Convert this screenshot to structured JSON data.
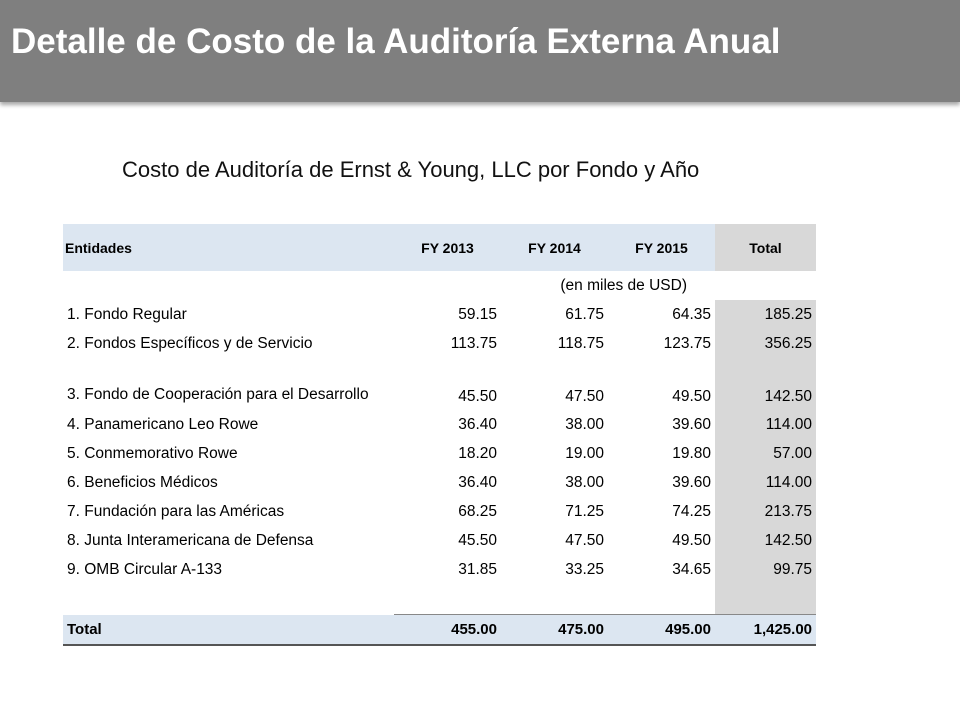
{
  "header": {
    "title": "Detalle de Costo de la Auditoría Externa Anual"
  },
  "subtitle": "Costo de Auditoría de Ernst & Young, LLC por Fondo y Año",
  "table": {
    "columns": [
      "Entidades",
      "FY 2013",
      "FY 2014",
      "FY 2015",
      "Total"
    ],
    "units": "(en miles de USD)",
    "rows": [
      {
        "name": "1. Fondo Regular",
        "v2013": "59.15",
        "v2014": "61.75",
        "v2015": "64.35",
        "total": "185.25"
      },
      {
        "name": "2. Fondos Específicos y de Servicio",
        "v2013": "113.75",
        "v2014": "118.75",
        "v2015": "123.75",
        "total": "356.25"
      },
      {
        "name": "3. Fondo de Cooperación para el Desarrollo",
        "v2013": "45.50",
        "v2014": "47.50",
        "v2015": "49.50",
        "total": "142.50"
      },
      {
        "name": "4. Panamericano Leo Rowe",
        "v2013": "36.40",
        "v2014": "38.00",
        "v2015": "39.60",
        "total": "114.00"
      },
      {
        "name": "5. Conmemorativo Rowe",
        "v2013": "18.20",
        "v2014": "19.00",
        "v2015": "19.80",
        "total": "57.00"
      },
      {
        "name": "6. Beneficios Médicos",
        "v2013": "36.40",
        "v2014": "38.00",
        "v2015": "39.60",
        "total": "114.00"
      },
      {
        "name": "7. Fundación para las Américas",
        "v2013": "68.25",
        "v2014": "71.25",
        "v2015": "74.25",
        "total": "213.75"
      },
      {
        "name": "8. Junta Interamericana de Defensa",
        "v2013": "45.50",
        "v2014": "47.50",
        "v2015": "49.50",
        "total": "142.50"
      },
      {
        "name": "9. OMB Circular A-133",
        "v2013": "31.85",
        "v2014": "33.25",
        "v2015": "34.65",
        "total": "99.75"
      }
    ],
    "total_row": {
      "name": "Total",
      "v2013": "455.00",
      "v2014": "475.00",
      "v2015": "495.00",
      "total": "1,425.00"
    }
  }
}
